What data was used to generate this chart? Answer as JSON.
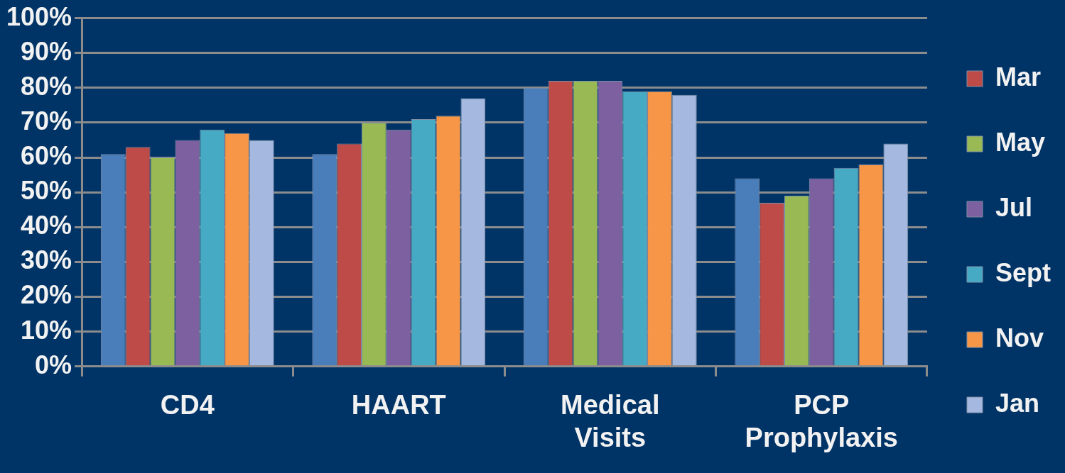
{
  "chart_data": {
    "type": "bar",
    "categories": [
      "CD4",
      "HAART",
      "Medical Visits",
      "PCP Prophylaxis"
    ],
    "series": [
      {
        "color": "#4a7ebb",
        "values": [
          61,
          61,
          80,
          54
        ]
      },
      {
        "name": "Mar",
        "color": "#be4b48",
        "values": [
          63,
          64,
          82,
          47
        ]
      },
      {
        "name": "May",
        "color": "#98b954",
        "values": [
          60,
          70,
          82,
          49
        ]
      },
      {
        "name": "Jul",
        "color": "#7d60a0",
        "values": [
          65,
          68,
          82,
          54
        ]
      },
      {
        "name": "Sept",
        "color": "#46aac5",
        "values": [
          68,
          71,
          79,
          57
        ]
      },
      {
        "name": "Nov",
        "color": "#f79646",
        "values": [
          67,
          72,
          79,
          58
        ]
      },
      {
        "name": "Jan",
        "color": "#a5b9e0",
        "values": [
          65,
          77,
          78,
          64
        ]
      }
    ],
    "ylim": [
      0,
      100
    ],
    "yticks": [
      {
        "value": 0,
        "label": "0%"
      },
      {
        "value": 10,
        "label": "10%"
      },
      {
        "value": 20,
        "label": "20%"
      },
      {
        "value": 30,
        "label": "30%"
      },
      {
        "value": 40,
        "label": "40%"
      },
      {
        "value": 50,
        "label": "50%"
      },
      {
        "value": 60,
        "label": "60%"
      },
      {
        "value": 70,
        "label": "70%"
      },
      {
        "value": 80,
        "label": "80%"
      },
      {
        "value": 90,
        "label": "90%"
      },
      {
        "value": 100,
        "label": "100%"
      }
    ],
    "grid": "y",
    "legend": "right"
  }
}
